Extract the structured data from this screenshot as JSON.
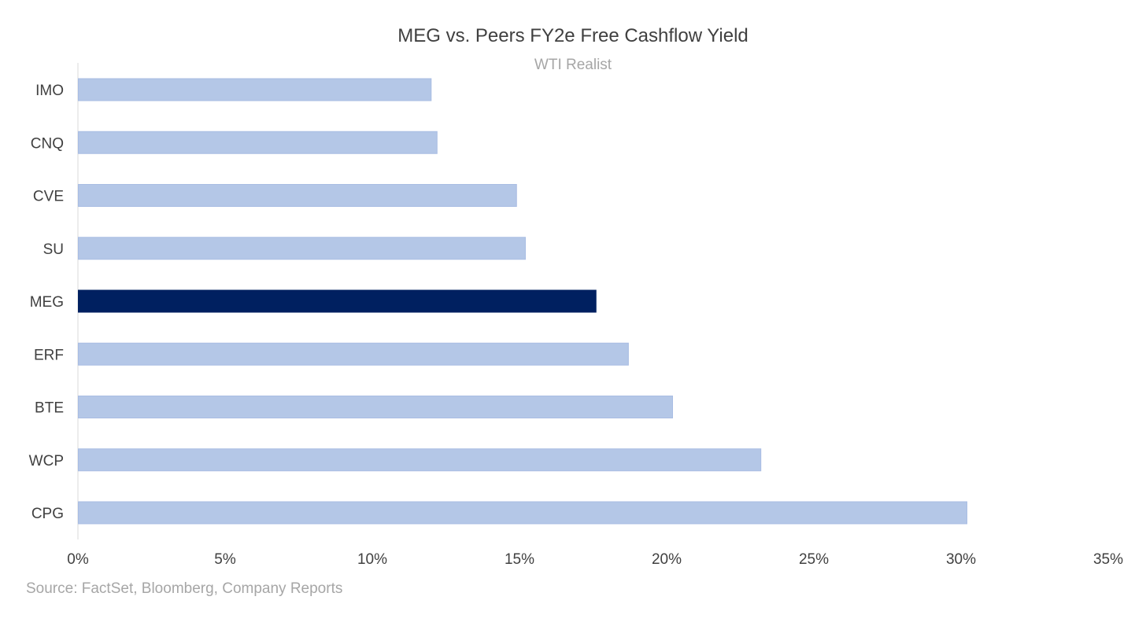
{
  "chart_data": {
    "type": "bar",
    "orientation": "horizontal",
    "title": "MEG vs. Peers FY2e Free Cashflow Yield",
    "subtitle": "WTI Realist",
    "categories": [
      "IMO",
      "CNQ",
      "CVE",
      "SU",
      "MEG",
      "ERF",
      "BTE",
      "WCP",
      "CPG"
    ],
    "values": [
      0.12,
      0.122,
      0.149,
      0.152,
      0.176,
      0.187,
      0.202,
      0.232,
      0.302
    ],
    "highlight": "MEG",
    "xlim": [
      0,
      0.35
    ],
    "xticks": [
      0,
      0.05,
      0.1,
      0.15,
      0.2,
      0.25,
      0.3,
      0.35
    ],
    "xtick_labels": [
      "0%",
      "5%",
      "10%",
      "15%",
      "20%",
      "25%",
      "30%",
      "35%"
    ],
    "xlabel": "",
    "ylabel": "",
    "grid": false,
    "colors": {
      "bar": "#b4c7e7",
      "bar_border": "#a9bde3",
      "highlight": "#002060",
      "axis": "#d9d9d9",
      "tick_text": "#404040"
    }
  },
  "source": "Source: FactSet, Bloomberg, Company Reports"
}
